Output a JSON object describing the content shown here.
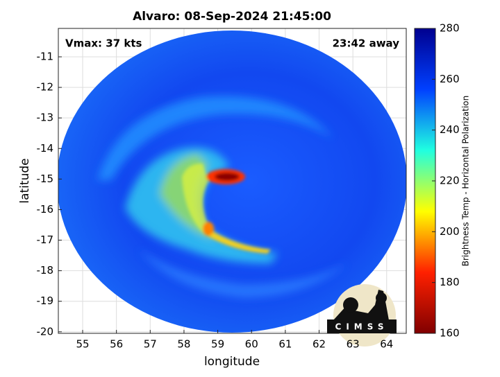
{
  "chart_data": {
    "type": "image",
    "title": "Alvaro: 08-Sep-2024 21:45:00",
    "xlabel": "longitude",
    "ylabel": "latitude",
    "xlim": [
      54.28,
      64.58
    ],
    "xticks": [
      55,
      56,
      57,
      58,
      59,
      60,
      61,
      62,
      63,
      64
    ],
    "ylim": [
      -20.05,
      -10.07
    ],
    "yticks": [
      -20,
      -19,
      -18,
      -17,
      -16,
      -15,
      -14,
      -13,
      -12,
      -11
    ],
    "grid": true,
    "annotations": [
      "Vmax: 37 kts",
      "23:42 away"
    ],
    "colorbar": {
      "label": "Brightness Temp - Horizontal Polarization",
      "clim": [
        160,
        280
      ],
      "ticks": [
        160,
        180,
        200,
        220,
        240,
        260,
        280
      ],
      "colormap": [
        "#800000",
        "#ff2000",
        "#ffff00",
        "#20ffe0",
        "#0040ff",
        "#00008f"
      ]
    },
    "logo": "CIMSS"
  }
}
